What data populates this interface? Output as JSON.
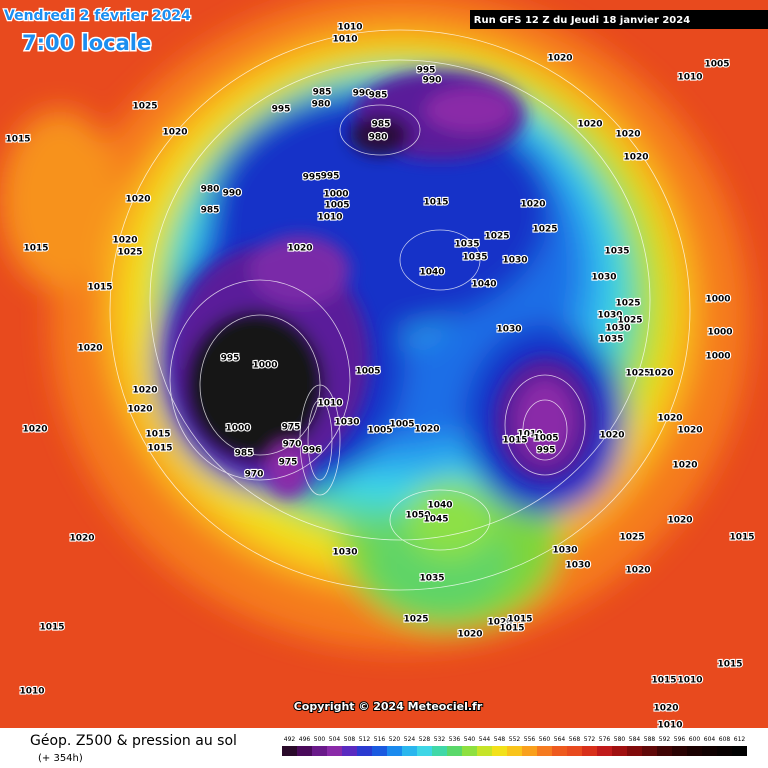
{
  "header": {
    "date": "Vendredi 2 février 2024",
    "time": "7:00 locale",
    "run": "Run GFS 12 Z du Jeudi 18 janvier 2024"
  },
  "footer": {
    "title": "Géop. Z500 & pression au sol",
    "lead": "(+ 354h)",
    "copyright": "Copyright © 2024 Meteociel.fr"
  },
  "scale": [
    492,
    496,
    500,
    504,
    508,
    512,
    516,
    520,
    524,
    528,
    532,
    536,
    540,
    544,
    548,
    552,
    556,
    560,
    564,
    568,
    572,
    576,
    580,
    584,
    588,
    592,
    596,
    600,
    604,
    608,
    612
  ],
  "pressure_labels": [
    "1010",
    "1010",
    "1020",
    "1010",
    "1005",
    "1025",
    "1020",
    "1015",
    "995",
    "985",
    "980",
    "990",
    "985",
    "995",
    "990",
    "985",
    "980",
    "1020",
    "1020",
    "1020",
    "980",
    "990",
    "985",
    "1020",
    "995",
    "995",
    "1000",
    "1005",
    "1010",
    "1015",
    "1020",
    "1025",
    "1025",
    "1035",
    "1035",
    "1030",
    "1035",
    "1020",
    "1025",
    "1015",
    "1020",
    "1040",
    "1040",
    "1030",
    "1025",
    "1030",
    "1030",
    "1000",
    "1025",
    "1035",
    "1015",
    "1020",
    "1030",
    "1000",
    "1000",
    "995",
    "1000",
    "1005",
    "1025",
    "1020",
    "1020",
    "1020",
    "1010",
    "1020",
    "1000",
    "975",
    "1015",
    "1015",
    "1030",
    "1005",
    "1005",
    "1020",
    "1010",
    "1015",
    "1005",
    "995",
    "1020",
    "1020",
    "1020",
    "1020",
    "985",
    "970",
    "996",
    "975",
    "970",
    "1040",
    "1050",
    "1045",
    "1020",
    "1030",
    "1030",
    "1030",
    "1025",
    "1020",
    "1015",
    "1020",
    "1035",
    "1025",
    "1020",
    "1015",
    "1015",
    "1020",
    "1015",
    "1015",
    "1015",
    "1010",
    "1010",
    "1020",
    "1010"
  ]
}
